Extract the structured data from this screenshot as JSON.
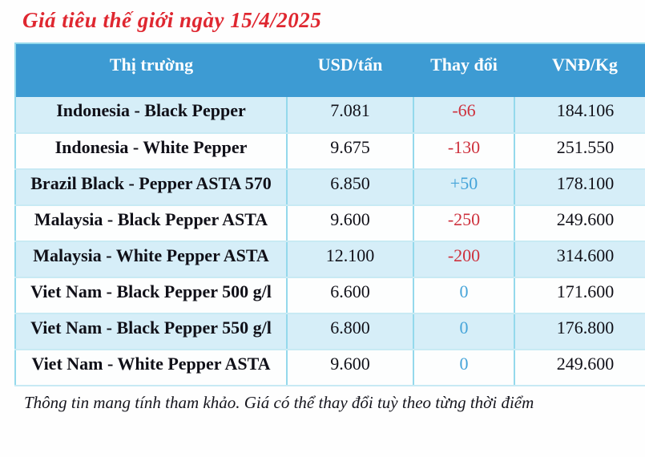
{
  "title": "Giá tiêu thế giới ngày 15/4/2025",
  "colors": {
    "title_red": "#df2730",
    "header_bg": "#3d9bd3",
    "header_text": "#ffffff",
    "row_alt_bg": "#d6eef8",
    "row_bg": "#fdfefe",
    "border_cyan": "#94d9ec",
    "negative": "#ce323e",
    "positive": "#45a4d9"
  },
  "table": {
    "columns": [
      "Thị trường",
      "USD/tấn",
      "Thay đổi",
      "VNĐ/Kg"
    ],
    "rows": [
      {
        "market": "Indonesia - Black Pepper",
        "usd": "7.081",
        "change": "-66",
        "vnd": "184.106"
      },
      {
        "market": "Indonesia - White Pepper",
        "usd": "9.675",
        "change": "-130",
        "vnd": "251.550"
      },
      {
        "market": "Brazil Black - Pepper ASTA 570",
        "usd": "6.850",
        "change": "+50",
        "vnd": "178.100"
      },
      {
        "market": "Malaysia - Black Pepper ASTA",
        "usd": "9.600",
        "change": "-250",
        "vnd": "249.600"
      },
      {
        "market": "Malaysia - White Pepper ASTA",
        "usd": "12.100",
        "change": "-200",
        "vnd": "314.600"
      },
      {
        "market": "Viet Nam - Black Pepper 500 g/l",
        "usd": "6.600",
        "change": "0",
        "vnd": "171.600"
      },
      {
        "market": "Viet Nam - Black Pepper 550 g/l",
        "usd": "6.800",
        "change": "0",
        "vnd": "176.800"
      },
      {
        "market": "Viet Nam - White Pepper ASTA",
        "usd": "9.600",
        "change": "0",
        "vnd": "249.600"
      }
    ]
  },
  "footnote": "Thông tin mang tính tham khảo. Giá có thể thay đổi tuỳ theo từng thời điểm"
}
